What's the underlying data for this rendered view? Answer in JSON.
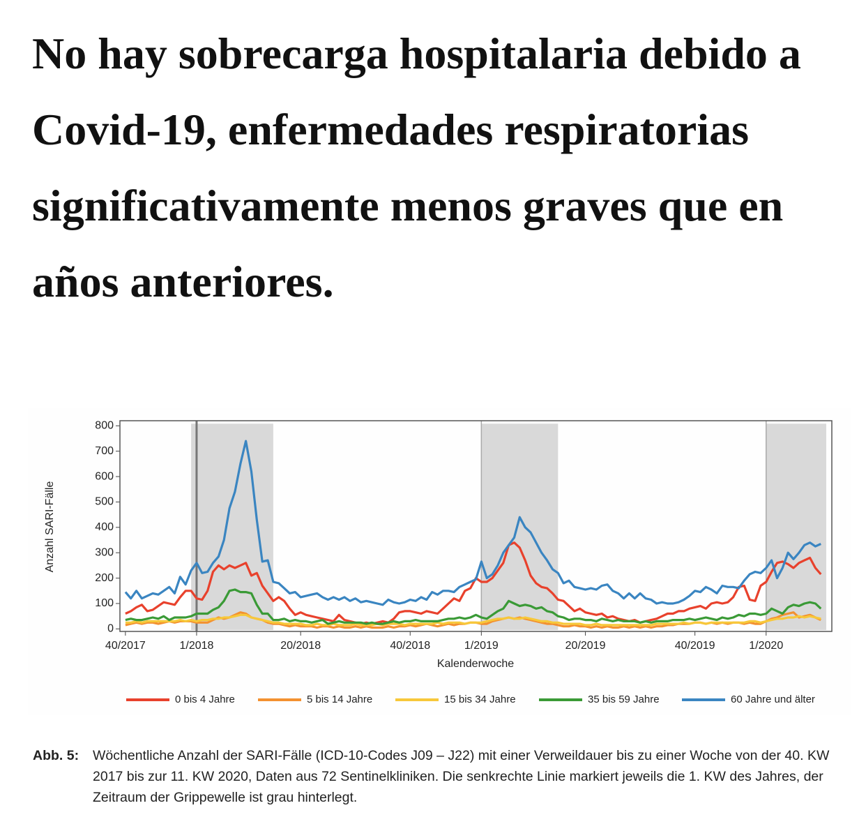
{
  "headline": "No hay sobrecarga hospitalaria debido a Covid-19, enfermedades respiratorias significativamente menos graves que en años anteriores.",
  "chart_data": {
    "type": "line",
    "y_label": "Anzahl SARI-Fälle",
    "x_label": "Kalenderwoche",
    "caption_label": "Abb. 5:",
    "caption": "Wöchentliche Anzahl der SARI-Fälle (ICD-10-Codes J09 – J22) mit einer Verweildauer bis zu einer Woche von der 40. KW 2017 bis zur 11. KW 2020, Daten aus 72 Sentinelkliniken. Die senkrechte Linie markiert jeweils die 1. KW des Jahres, der Zeitraum der Grippewelle ist grau hinterlegt.",
    "xlim": [
      -1,
      129
    ],
    "ylim": [
      -10,
      820
    ],
    "xticks": [
      {
        "value": 0,
        "label": "40/2017"
      },
      {
        "value": 13,
        "label": "1/2018"
      },
      {
        "value": 32,
        "label": "20/2018"
      },
      {
        "value": 52,
        "label": "40/2018"
      },
      {
        "value": 65,
        "label": "1/2019"
      },
      {
        "value": 84,
        "label": "20/2019"
      },
      {
        "value": 104,
        "label": "40/2019"
      },
      {
        "value": 117,
        "label": "1/2020"
      }
    ],
    "yticks": [
      0,
      100,
      200,
      300,
      400,
      500,
      600,
      700,
      800
    ],
    "flu_seasons": [
      [
        12,
        27
      ],
      [
        65,
        79
      ],
      [
        117,
        128
      ]
    ],
    "year_lines": [
      13,
      65,
      117
    ],
    "shade_color": "#d9d9d9",
    "x": [
      0,
      1,
      2,
      3,
      4,
      5,
      6,
      7,
      8,
      9,
      10,
      11,
      12,
      13,
      14,
      15,
      16,
      17,
      18,
      19,
      20,
      21,
      22,
      23,
      24,
      25,
      26,
      27,
      28,
      29,
      30,
      31,
      32,
      33,
      34,
      35,
      36,
      37,
      38,
      39,
      40,
      41,
      42,
      43,
      44,
      45,
      46,
      47,
      48,
      49,
      50,
      51,
      52,
      53,
      54,
      55,
      56,
      57,
      58,
      59,
      60,
      61,
      62,
      63,
      64,
      65,
      66,
      67,
      68,
      69,
      70,
      71,
      72,
      73,
      74,
      75,
      76,
      77,
      78,
      79,
      80,
      81,
      82,
      83,
      84,
      85,
      86,
      87,
      88,
      89,
      90,
      91,
      92,
      93,
      94,
      95,
      96,
      97,
      98,
      99,
      100,
      101,
      102,
      103,
      104,
      105,
      106,
      107,
      108,
      109,
      110,
      111,
      112,
      113,
      114,
      115,
      116,
      117,
      118,
      119,
      120,
      121,
      122,
      123,
      124,
      125,
      126,
      127
    ],
    "series": [
      {
        "name": "0 bis 4 Jahre",
        "color": "#e8412c",
        "values": [
          60,
          70,
          85,
          95,
          70,
          75,
          90,
          105,
          100,
          95,
          125,
          150,
          150,
          120,
          115,
          150,
          225,
          250,
          235,
          250,
          240,
          250,
          260,
          210,
          220,
          170,
          140,
          110,
          125,
          110,
          80,
          55,
          65,
          55,
          50,
          45,
          40,
          35,
          30,
          55,
          35,
          30,
          25,
          20,
          25,
          20,
          25,
          30,
          25,
          40,
          65,
          70,
          70,
          65,
          60,
          70,
          65,
          60,
          80,
          100,
          120,
          110,
          150,
          160,
          200,
          185,
          185,
          200,
          230,
          260,
          330,
          340,
          320,
          270,
          210,
          180,
          165,
          160,
          140,
          115,
          110,
          90,
          70,
          80,
          65,
          60,
          55,
          60,
          45,
          50,
          40,
          35,
          30,
          35,
          25,
          30,
          35,
          40,
          50,
          60,
          60,
          70,
          70,
          80,
          85,
          90,
          80,
          100,
          105,
          100,
          105,
          125,
          165,
          170,
          115,
          110,
          170,
          185,
          225,
          260,
          265,
          255,
          240,
          260,
          270,
          280,
          240,
          215
        ]
      },
      {
        "name": "5 bis 14 Jahre",
        "color": "#f39130",
        "values": [
          15,
          20,
          25,
          20,
          25,
          25,
          20,
          25,
          30,
          25,
          30,
          30,
          30,
          25,
          25,
          25,
          35,
          45,
          40,
          45,
          55,
          65,
          60,
          45,
          40,
          35,
          25,
          20,
          20,
          15,
          10,
          15,
          10,
          10,
          10,
          5,
          10,
          10,
          5,
          10,
          5,
          5,
          10,
          5,
          10,
          5,
          5,
          5,
          10,
          5,
          10,
          10,
          15,
          10,
          15,
          20,
          15,
          10,
          15,
          20,
          15,
          20,
          20,
          25,
          25,
          20,
          20,
          30,
          35,
          40,
          45,
          40,
          45,
          40,
          35,
          30,
          25,
          20,
          20,
          15,
          10,
          10,
          15,
          10,
          10,
          5,
          10,
          5,
          10,
          5,
          5,
          10,
          5,
          10,
          5,
          10,
          5,
          10,
          10,
          15,
          15,
          20,
          20,
          20,
          25,
          25,
          20,
          25,
          20,
          25,
          20,
          25,
          25,
          20,
          25,
          20,
          20,
          30,
          40,
          45,
          55,
          60,
          65,
          45,
          50,
          55,
          45,
          35
        ]
      },
      {
        "name": "15 bis 34 Jahre",
        "color": "#f7c83a",
        "values": [
          25,
          25,
          30,
          25,
          30,
          30,
          30,
          30,
          30,
          30,
          35,
          30,
          35,
          30,
          35,
          35,
          40,
          40,
          45,
          45,
          50,
          55,
          55,
          45,
          40,
          35,
          30,
          25,
          25,
          20,
          20,
          20,
          20,
          15,
          15,
          20,
          15,
          15,
          20,
          15,
          15,
          15,
          20,
          15,
          15,
          15,
          20,
          15,
          20,
          20,
          20,
          15,
          20,
          20,
          20,
          20,
          20,
          25,
          20,
          25,
          25,
          25,
          20,
          25,
          25,
          25,
          30,
          35,
          40,
          40,
          45,
          40,
          40,
          45,
          40,
          35,
          30,
          30,
          25,
          25,
          20,
          20,
          20,
          20,
          15,
          15,
          20,
          15,
          15,
          15,
          15,
          15,
          15,
          15,
          15,
          15,
          15,
          20,
          20,
          20,
          20,
          20,
          25,
          20,
          25,
          25,
          20,
          25,
          25,
          25,
          25,
          25,
          25,
          25,
          30,
          30,
          25,
          30,
          35,
          40,
          40,
          45,
          45,
          50,
          45,
          50,
          45,
          40
        ]
      },
      {
        "name": "35 bis 59 Jahre",
        "color": "#3a9a36",
        "values": [
          35,
          40,
          35,
          35,
          40,
          45,
          40,
          50,
          35,
          45,
          45,
          45,
          50,
          60,
          60,
          60,
          75,
          85,
          110,
          150,
          155,
          145,
          145,
          140,
          95,
          60,
          60,
          35,
          35,
          40,
          30,
          35,
          30,
          30,
          25,
          30,
          35,
          20,
          25,
          30,
          25,
          25,
          25,
          25,
          20,
          25,
          20,
          20,
          25,
          30,
          25,
          30,
          30,
          35,
          30,
          30,
          30,
          30,
          35,
          40,
          40,
          45,
          40,
          45,
          55,
          45,
          40,
          55,
          70,
          80,
          110,
          100,
          90,
          95,
          90,
          80,
          85,
          70,
          65,
          50,
          45,
          35,
          40,
          40,
          35,
          35,
          30,
          40,
          35,
          30,
          35,
          30,
          30,
          30,
          25,
          30,
          25,
          30,
          30,
          30,
          35,
          35,
          35,
          40,
          35,
          40,
          45,
          40,
          35,
          45,
          40,
          45,
          55,
          50,
          60,
          60,
          55,
          60,
          80,
          70,
          60,
          85,
          95,
          90,
          100,
          105,
          100,
          80
        ]
      },
      {
        "name": "60 Jahre und älter",
        "color": "#3a85c1",
        "values": [
          145,
          120,
          150,
          120,
          130,
          140,
          135,
          150,
          165,
          140,
          205,
          175,
          230,
          260,
          220,
          225,
          260,
          285,
          350,
          475,
          540,
          650,
          740,
          620,
          430,
          265,
          270,
          185,
          180,
          160,
          140,
          145,
          125,
          130,
          135,
          140,
          125,
          115,
          125,
          115,
          125,
          110,
          120,
          105,
          110,
          105,
          100,
          95,
          115,
          105,
          100,
          105,
          115,
          110,
          125,
          115,
          145,
          135,
          150,
          150,
          145,
          165,
          175,
          185,
          195,
          265,
          200,
          215,
          250,
          300,
          330,
          360,
          440,
          400,
          380,
          340,
          300,
          270,
          235,
          220,
          180,
          190,
          165,
          160,
          155,
          160,
          155,
          170,
          175,
          150,
          140,
          120,
          140,
          120,
          140,
          120,
          115,
          100,
          105,
          100,
          100,
          105,
          115,
          130,
          150,
          145,
          165,
          155,
          140,
          170,
          165,
          165,
          160,
          190,
          215,
          225,
          220,
          240,
          270,
          200,
          240,
          300,
          275,
          300,
          330,
          340,
          325,
          335
        ]
      }
    ]
  }
}
